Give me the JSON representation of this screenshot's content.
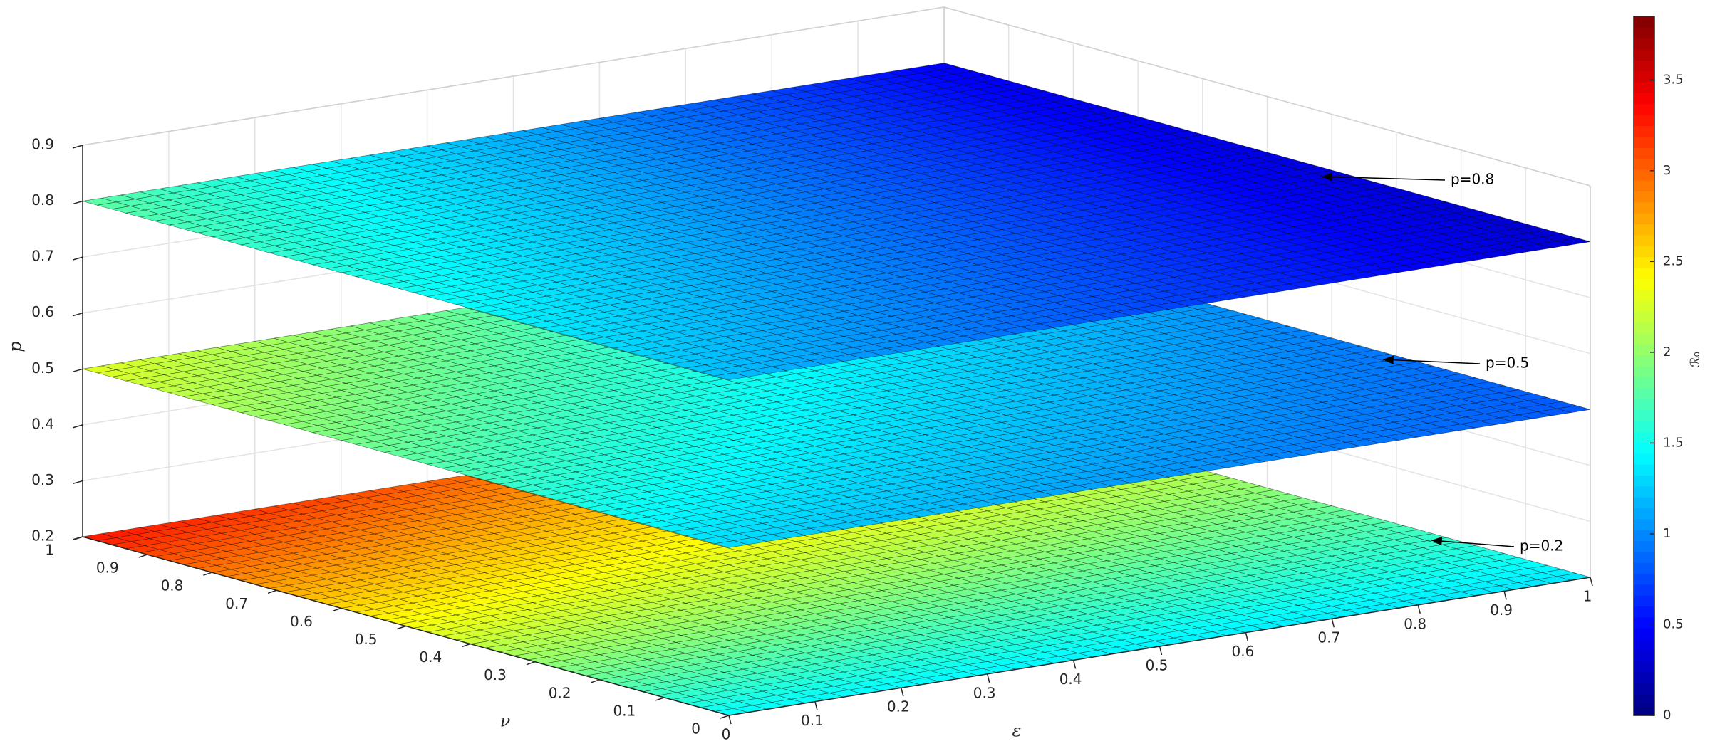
{
  "chart_data": {
    "type": "surface",
    "x_label": "ε",
    "y_label": "ν",
    "z_label": "p",
    "xlim": [
      0,
      1
    ],
    "ylim": [
      0,
      1
    ],
    "zlim": [
      0.2,
      0.9
    ],
    "xticks": [
      0,
      0.1,
      0.2,
      0.3,
      0.4,
      0.5,
      0.6,
      0.7,
      0.8,
      0.9,
      1
    ],
    "yticks": [
      0,
      0.1,
      0.2,
      0.3,
      0.4,
      0.5,
      0.6,
      0.7,
      0.8,
      0.9,
      1
    ],
    "zticks": [
      0.2,
      0.3,
      0.4,
      0.5,
      0.6,
      0.7,
      0.8,
      0.9
    ],
    "grid": true,
    "colormap": "jet",
    "colorbar": {
      "label": "ℛ₀",
      "clim": [
        0,
        3.85
      ],
      "ticks": [
        0,
        0.5,
        1,
        1.5,
        2,
        2.5,
        3,
        3.5
      ]
    },
    "series": [
      {
        "z": 0.2,
        "corner_values": [
          1.45,
          1.35,
          3.3,
          2.6
        ]
      },
      {
        "z": 0.5,
        "corner_values": [
          1.3,
          0.8,
          2.3,
          1.2
        ]
      },
      {
        "z": 0.8,
        "corner_values": [
          1.2,
          0.3,
          1.8,
          0.45
        ]
      }
    ],
    "annotations": [
      {
        "text": "p=0.2"
      },
      {
        "text": "p=0.5"
      },
      {
        "text": "p=0.8"
      }
    ]
  }
}
